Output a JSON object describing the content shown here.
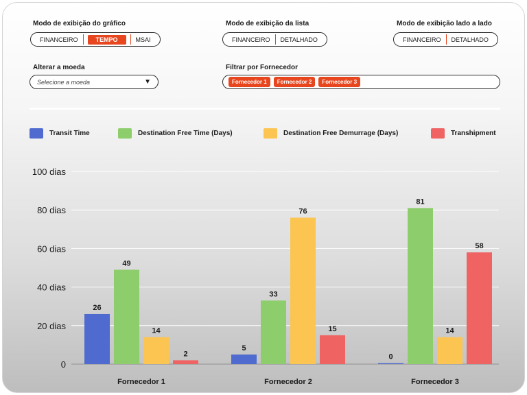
{
  "controls": {
    "chart_mode": {
      "label": "Modo de exibição do gráfico",
      "options": [
        "FINANCEIRO",
        "TEMPO",
        "MSAI"
      ],
      "selected": "TEMPO"
    },
    "list_mode": {
      "label": "Modo de exibição da lista",
      "options": [
        "FINANCEIRO",
        "DETALHADO"
      ]
    },
    "side_mode": {
      "label": "Modo de exibição lado a lado",
      "options": [
        "FINANCEIRO",
        "DETALHADO"
      ]
    },
    "currency": {
      "label": "Alterar a moeda",
      "placeholder": "Selecione a moeda"
    },
    "supplier_filter": {
      "label": "Filtrar por Fornecedor",
      "chips": [
        "Fornecedor 1",
        "Fornecedor 2",
        "Fornecedor 3"
      ]
    }
  },
  "colors": {
    "accent": "#e8461e",
    "transit": "#4f6bcf",
    "free_time": "#8dcd6c",
    "demurrage": "#fcc551",
    "transhipment": "#ef6363"
  },
  "chart_data": {
    "type": "bar",
    "categories": [
      "Fornecedor 1",
      "Fornecedor 2",
      "Fornecedor 3"
    ],
    "series": [
      {
        "name": "Transit Time",
        "color": "#4f6bcf",
        "values": [
          26,
          5,
          0
        ]
      },
      {
        "name": "Destination Free Time (Days)",
        "color": "#8dcd6c",
        "values": [
          49,
          33,
          81
        ]
      },
      {
        "name": "Destination Free Demurrage (Days)",
        "color": "#fcc551",
        "values": [
          14,
          76,
          14
        ]
      },
      {
        "name": "Transhipment",
        "color": "#ef6363",
        "values": [
          2,
          15,
          58
        ]
      }
    ],
    "ylim": [
      0,
      100
    ],
    "yticks": [
      0,
      20,
      40,
      60,
      80,
      100
    ],
    "ytick_labels": [
      "0",
      "20 dias",
      "40 dias",
      "60 dias",
      "80 dias",
      "100 dias"
    ],
    "grid": true,
    "legend": "top"
  }
}
